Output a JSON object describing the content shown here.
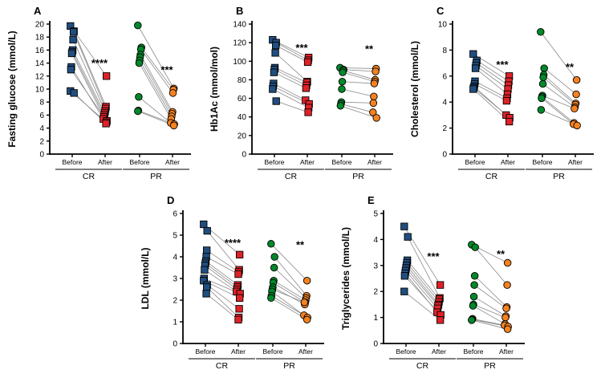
{
  "figure": {
    "background": "#ffffff",
    "colors": {
      "cr_before": "#204e80",
      "cr_after": "#e02228",
      "pr_before": "#00882a",
      "pr_after": "#f58220",
      "connector_line": "#8a8a8a",
      "axis": "#000000",
      "significance": "#000000"
    },
    "x_tick_labels": [
      "Before",
      "After",
      "Before",
      "After"
    ],
    "group_labels": [
      "CR",
      "PR"
    ]
  },
  "chart_data": [
    {
      "panel_label": "A",
      "type": "scatter",
      "subtype": "paired-before-after",
      "ylabel": "Fasting glucose (mmol/L)",
      "ylim": [
        0,
        20
      ],
      "ytick_step": 2,
      "x_categories": [
        "Before",
        "After",
        "Before",
        "After"
      ],
      "series": [
        {
          "name": "CR",
          "marker": "square",
          "significance": "****",
          "significance_y": 13.8,
          "pairs": [
            [
              19.7,
              12.0
            ],
            [
              18.9,
              7.3
            ],
            [
              18.8,
              7.0
            ],
            [
              17.6,
              6.6
            ],
            [
              16.0,
              6.3
            ],
            [
              15.7,
              6.0
            ],
            [
              15.5,
              5.7
            ],
            [
              13.4,
              5.4
            ],
            [
              13.0,
              5.1
            ],
            [
              9.7,
              4.9
            ],
            [
              9.4,
              4.7
            ]
          ]
        },
        {
          "name": "PR",
          "marker": "circle",
          "significance": "***",
          "significance_y": 12.8,
          "pairs": [
            [
              19.8,
              10.1
            ],
            [
              16.4,
              9.9
            ],
            [
              16.1,
              9.4
            ],
            [
              15.3,
              6.5
            ],
            [
              14.9,
              6.2
            ],
            [
              14.4,
              5.8
            ],
            [
              14.0,
              5.4
            ],
            [
              8.8,
              4.8
            ],
            [
              6.7,
              4.6
            ],
            [
              6.6,
              4.4
            ]
          ]
        }
      ]
    },
    {
      "panel_label": "B",
      "type": "scatter",
      "subtype": "paired-before-after",
      "ylabel": "Hb1Ac (mmol/mol)",
      "ylim": [
        0,
        140
      ],
      "ytick_step": 20,
      "x_categories": [
        "Before",
        "After",
        "Before",
        "After"
      ],
      "series": [
        {
          "name": "CR",
          "marker": "square",
          "significance": "***",
          "significance_y": 113,
          "pairs": [
            [
              123,
              104
            ],
            [
              120,
              101
            ],
            [
              117,
              99
            ],
            [
              109,
              78
            ],
            [
              93,
              77
            ],
            [
              91,
              74
            ],
            [
              88,
              71
            ],
            [
              76,
              58
            ],
            [
              73,
              54
            ],
            [
              70,
              50
            ],
            [
              57,
              45
            ]
          ]
        },
        {
          "name": "PR",
          "marker": "circle",
          "significance": "**",
          "significance_y": 112,
          "pairs": [
            [
              93,
              92
            ],
            [
              91,
              89
            ],
            [
              90,
              80
            ],
            [
              88,
              78
            ],
            [
              78,
              76
            ],
            [
              70,
              62
            ],
            [
              56,
              55
            ],
            [
              54,
              45
            ],
            [
              52,
              39
            ]
          ]
        }
      ]
    },
    {
      "panel_label": "C",
      "type": "scatter",
      "subtype": "paired-before-after",
      "ylabel": "Cholesterol (mmol/L)",
      "ylim": [
        0,
        10
      ],
      "ytick_step": 2,
      "x_categories": [
        "Before",
        "After",
        "Before",
        "After"
      ],
      "series": [
        {
          "name": "CR",
          "marker": "square",
          "significance": "***",
          "significance_y": 6.8,
          "pairs": [
            [
              7.7,
              6.0
            ],
            [
              7.2,
              5.6
            ],
            [
              7.0,
              5.3
            ],
            [
              6.8,
              5.0
            ],
            [
              6.6,
              4.6
            ],
            [
              5.6,
              4.3
            ],
            [
              5.4,
              4.1
            ],
            [
              5.2,
              3.0
            ],
            [
              5.1,
              2.8
            ],
            [
              5.0,
              2.5
            ]
          ]
        },
        {
          "name": "PR",
          "marker": "circle",
          "significance": "**",
          "significance_y": 6.6,
          "pairs": [
            [
              9.4,
              5.7
            ],
            [
              6.6,
              4.6
            ],
            [
              6.1,
              3.9
            ],
            [
              5.9,
              3.8
            ],
            [
              5.4,
              3.6
            ],
            [
              4.5,
              3.5
            ],
            [
              4.4,
              2.4
            ],
            [
              4.3,
              2.3
            ],
            [
              3.4,
              2.2
            ]
          ]
        }
      ]
    },
    {
      "panel_label": "D",
      "type": "scatter",
      "subtype": "paired-before-after",
      "ylabel": "LDL (mmol/L)",
      "ylim": [
        0,
        6
      ],
      "ytick_step": 1,
      "x_categories": [
        "Before",
        "After",
        "Before",
        "After"
      ],
      "series": [
        {
          "name": "CR",
          "marker": "square",
          "significance": "****",
          "significance_y": 4.6,
          "pairs": [
            [
              5.5,
              4.1
            ],
            [
              5.2,
              3.4
            ],
            [
              4.3,
              3.3
            ],
            [
              4.0,
              3.2
            ],
            [
              3.8,
              2.7
            ],
            [
              3.7,
              2.6
            ],
            [
              3.6,
              2.5
            ],
            [
              3.4,
              2.4
            ],
            [
              3.0,
              2.3
            ],
            [
              2.9,
              2.1
            ],
            [
              2.7,
              1.6
            ],
            [
              2.6,
              1.2
            ],
            [
              2.3,
              1.1
            ]
          ]
        },
        {
          "name": "PR",
          "marker": "circle",
          "significance": "**",
          "significance_y": 4.5,
          "pairs": [
            [
              4.6,
              2.9
            ],
            [
              4.0,
              2.2
            ],
            [
              3.5,
              2.1
            ],
            [
              2.9,
              2.0
            ],
            [
              2.8,
              1.9
            ],
            [
              2.6,
              1.8
            ],
            [
              2.5,
              1.9
            ],
            [
              2.4,
              1.3
            ],
            [
              2.2,
              1.2
            ],
            [
              2.1,
              1.1
            ]
          ]
        }
      ]
    },
    {
      "panel_label": "E",
      "type": "scatter",
      "subtype": "paired-before-after",
      "ylabel": "Triglycerides (mmol/L)",
      "ylim": [
        0,
        5
      ],
      "ytick_step": 1,
      "x_categories": [
        "Before",
        "After",
        "Before",
        "After"
      ],
      "series": [
        {
          "name": "CR",
          "marker": "square",
          "significance": "***",
          "significance_y": 3.3,
          "pairs": [
            [
              4.5,
              2.25
            ],
            [
              4.1,
              1.75
            ],
            [
              3.2,
              1.7
            ],
            [
              3.1,
              1.6
            ],
            [
              3.0,
              1.5
            ],
            [
              2.9,
              1.45
            ],
            [
              2.8,
              1.35
            ],
            [
              2.7,
              1.2
            ],
            [
              2.6,
              1.1
            ],
            [
              2.0,
              0.9
            ]
          ]
        },
        {
          "name": "PR",
          "marker": "circle",
          "significance": "**",
          "significance_y": 3.4,
          "pairs": [
            [
              3.8,
              3.1
            ],
            [
              3.7,
              2.25
            ],
            [
              2.6,
              1.4
            ],
            [
              2.25,
              1.35
            ],
            [
              1.8,
              1.05
            ],
            [
              1.5,
              1.0
            ],
            [
              1.45,
              0.75
            ],
            [
              0.95,
              0.7
            ],
            [
              0.92,
              0.65
            ],
            [
              0.9,
              0.55
            ]
          ]
        }
      ]
    }
  ]
}
